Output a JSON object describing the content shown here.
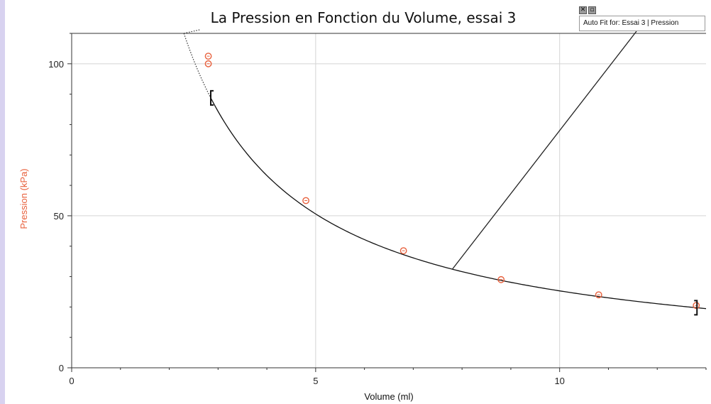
{
  "chart_data": {
    "type": "scatter",
    "title": "La Pression en Fonction du Volume, essai 3",
    "xlabel": "Volume  (ml)",
    "ylabel": "Pression (kPa)",
    "xlim": [
      0,
      13
    ],
    "ylim": [
      0,
      110
    ],
    "x_ticks": [
      0,
      5,
      10
    ],
    "y_ticks": [
      0,
      50,
      100
    ],
    "x_tick_labels": [
      "0",
      "5",
      "10"
    ],
    "y_tick_labels": [
      "0",
      "50",
      "100"
    ],
    "grid": true,
    "series": [
      {
        "points": [
          {
            "x": 2.8,
            "y": 102.5
          },
          {
            "x": 2.8,
            "y": 100
          },
          {
            "x": 4.8,
            "y": 55
          },
          {
            "x": 6.8,
            "y": 38.5
          },
          {
            "x": 8.8,
            "y": 29
          },
          {
            "x": 10.8,
            "y": 24
          },
          {
            "x": 12.8,
            "y": 20.5
          }
        ],
        "color": "#e8603c"
      }
    ],
    "fit_curve": {
      "form": "A/x",
      "A": 253,
      "x_from": 2.85,
      "x_to": 13,
      "color": "#111111"
    },
    "fit_range": [
      2.85,
      12.8
    ],
    "annotation": {
      "label": "Auto Fit for: Essai 3 | Pression",
      "anchor_x": 7.8,
      "anchor_y": 32.4
    }
  },
  "colors": {
    "axis_label": "#e8603c",
    "points": "#e8603c",
    "grid": "#d4d4d4"
  },
  "icons": {
    "close": "close-icon",
    "restore": "restore-icon"
  }
}
